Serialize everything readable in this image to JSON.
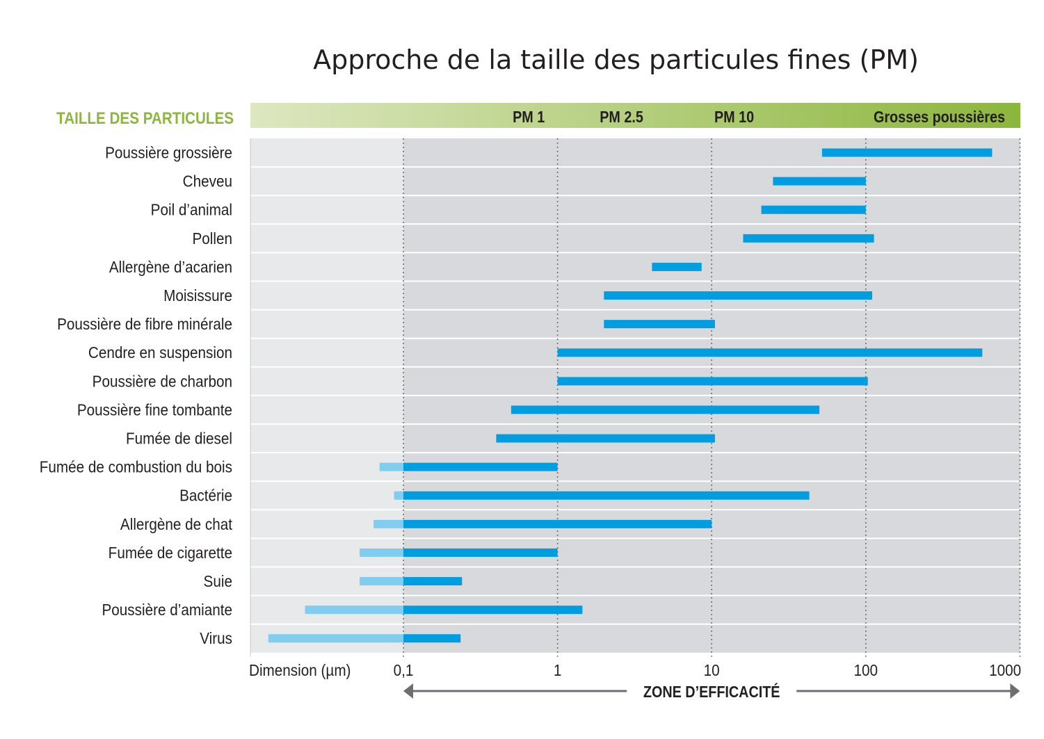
{
  "title": "Approche de la taille des particules fines (PM)",
  "colors": {
    "bar": "#009ee0",
    "bar_extension": "#80cdef",
    "header_start": "#dde7c0",
    "header_end": "#8cb63c",
    "header_label": "#8cb63c",
    "left_zone": "#e8e9eb",
    "right_zone": "#d8d9dc",
    "arrow": "#6d6e71"
  },
  "chart_data": {
    "type": "bar",
    "orientation": "horizontal-range",
    "title": "Approche de la taille des particules fines (PM)",
    "row_header": "TAILLE DES PARTICULES",
    "xlabel": "Dimension (µm)",
    "x_scale": "log",
    "xlim": [
      0.0085,
      1000
    ],
    "x_ticks": [
      {
        "value": 0.1,
        "label": "0,1"
      },
      {
        "value": 1,
        "label": "1"
      },
      {
        "value": 10,
        "label": "10"
      },
      {
        "value": 100,
        "label": "100"
      },
      {
        "value": 1000,
        "label": "1000"
      }
    ],
    "header_labels": [
      {
        "label": "PM 1",
        "value": 0.65
      },
      {
        "label": "PM 2.5",
        "value": 2.6
      },
      {
        "label": "PM 10",
        "value": 14
      },
      {
        "label": "Grosses poussières",
        "value": 210
      }
    ],
    "zone": {
      "label": "ZONE D’EFFICACITÉ",
      "from": 0.1,
      "to": 1000
    },
    "categories": [
      "Poussière grossière",
      "Cheveu",
      "Poil d’animal",
      "Pollen",
      "Allergène d’acarien",
      "Moisissure",
      "Poussière de fibre minérale",
      "Cendre en suspension",
      "Poussière de charbon",
      "Poussière fine tombante",
      "Fumée de diesel",
      "Fumée de combustion du bois",
      "Bactérie",
      "Allergène de chat",
      "Fumée de cigarette",
      "Suie",
      "Poussière d’amiante",
      "Virus"
    ],
    "ranges": [
      {
        "min": 52,
        "max": 660
      },
      {
        "min": 25,
        "max": 100
      },
      {
        "min": 21,
        "max": 100
      },
      {
        "min": 16,
        "max": 113
      },
      {
        "min": 4.1,
        "max": 8.6
      },
      {
        "min": 2.0,
        "max": 110
      },
      {
        "min": 2.0,
        "max": 10.5
      },
      {
        "min": 1.0,
        "max": 570
      },
      {
        "min": 1.0,
        "max": 103
      },
      {
        "min": 0.5,
        "max": 50
      },
      {
        "min": 0.4,
        "max": 10.5
      },
      {
        "min": 0.07,
        "max": 1.0
      },
      {
        "min": 0.087,
        "max": 43
      },
      {
        "min": 0.064,
        "max": 10
      },
      {
        "min": 0.052,
        "max": 1.0
      },
      {
        "min": 0.052,
        "max": 0.24
      },
      {
        "min": 0.023,
        "max": 1.45
      },
      {
        "min": 0.0133,
        "max": 0.235
      }
    ]
  }
}
